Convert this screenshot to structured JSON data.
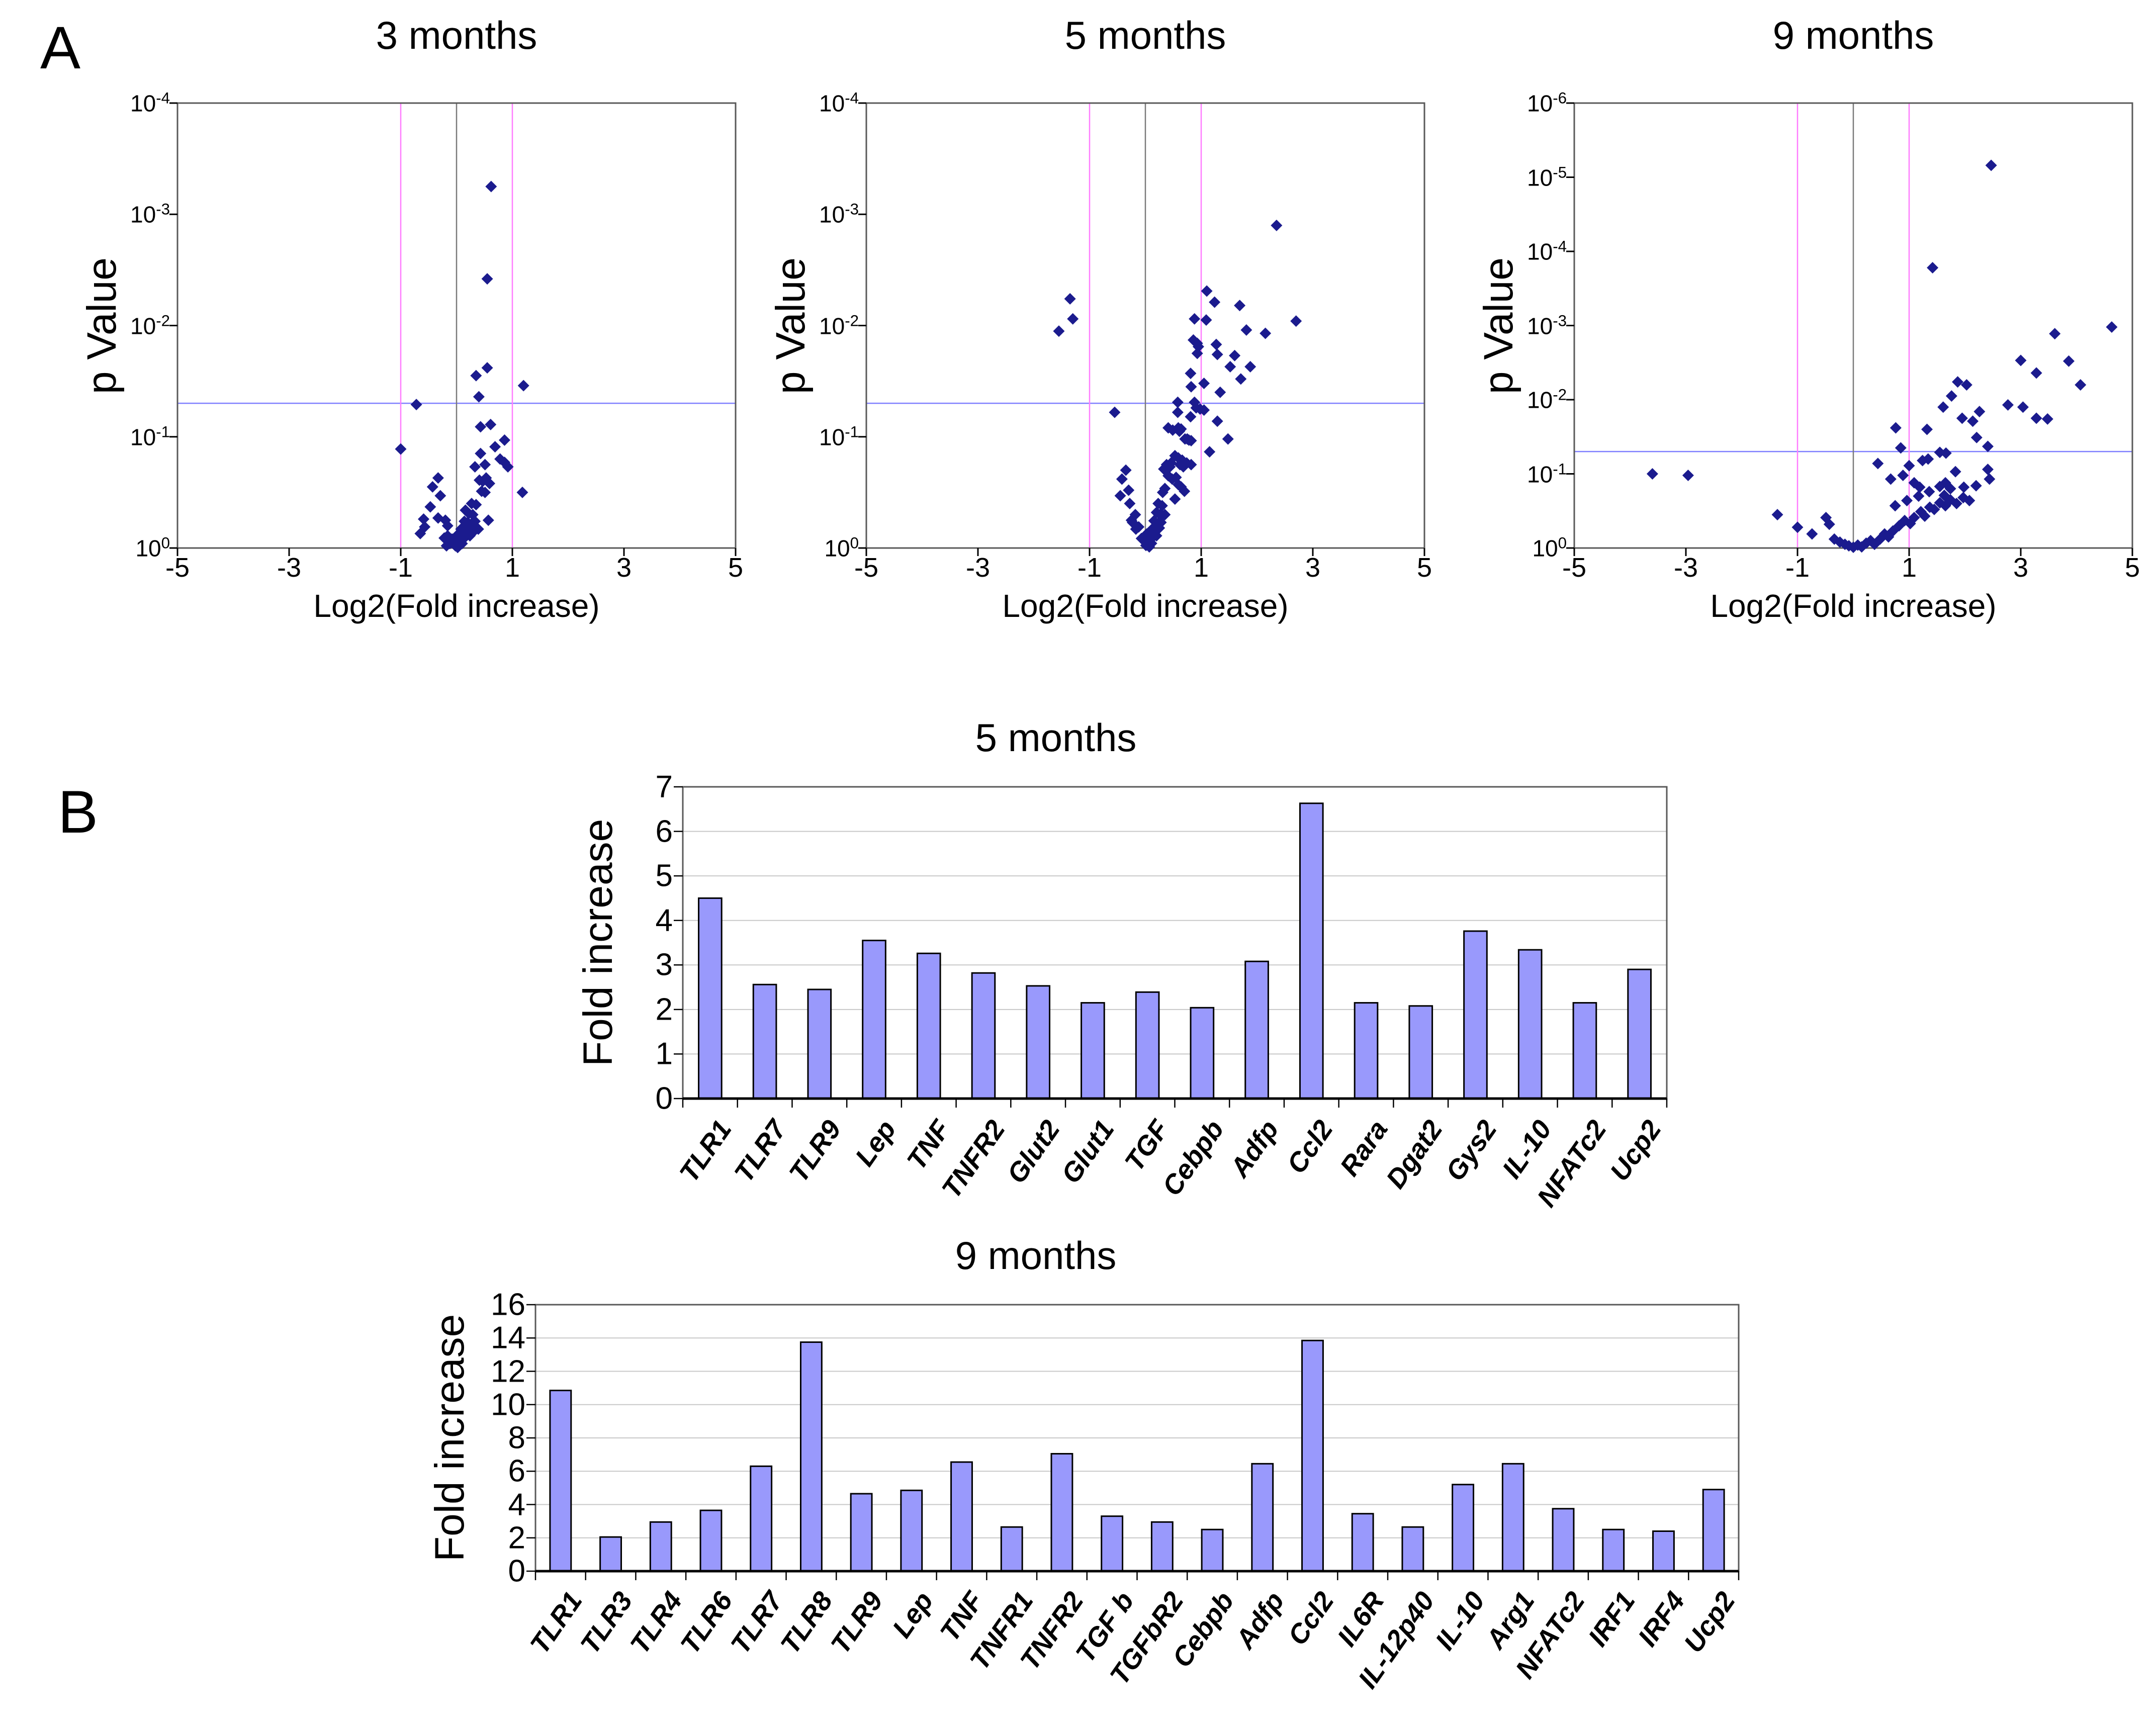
{
  "panel_a": {
    "label": "A"
  },
  "panel_b": {
    "label": "B"
  },
  "colors": {
    "point": "#1b1b8e",
    "threshold_pink": "#ff7dff",
    "threshold_gray": "#7a7a7a",
    "threshold_blue": "#8080ff",
    "bar_fill": "#9999fc",
    "bar_border": "#000000",
    "gridline": "#c8c8c8",
    "frame": "#595959",
    "axis": "#000000"
  },
  "chart_data": [
    {
      "type": "scatter",
      "title": "3 months",
      "xlabel": "Log2(Fold increase)",
      "ylabel": "p Value",
      "x_range": [
        -5,
        5
      ],
      "x_ticks": [
        -5,
        -3,
        -1,
        1,
        3,
        5
      ],
      "y_axis": "log p value, 10^0 at bottom to 10^-4 at top",
      "y_top_exponent": 4,
      "y_tick_exponents": [
        4,
        3,
        2,
        1,
        0
      ],
      "thresholds": {
        "vertical_pink_x": [
          -1,
          1
        ],
        "vertical_gray_x": 0,
        "horizontal_blue_p": 0.05
      },
      "points_x_log2fold_y_neglog10p": [
        [
          0.62,
          3.25
        ],
        [
          0.55,
          2.42
        ],
        [
          0.35,
          1.55
        ],
        [
          1.2,
          1.46
        ],
        [
          0.4,
          1.36
        ],
        [
          -0.72,
          1.29
        ],
        [
          0.55,
          1.62
        ],
        [
          -1.0,
          0.89
        ],
        [
          0.43,
          1.09
        ],
        [
          0.61,
          1.11
        ],
        [
          0.86,
          0.97
        ],
        [
          0.69,
          0.91
        ],
        [
          0.43,
          0.85
        ],
        [
          0.78,
          0.8
        ],
        [
          0.86,
          0.77
        ],
        [
          0.92,
          0.73
        ],
        [
          0.33,
          0.73
        ],
        [
          0.51,
          0.75
        ],
        [
          -0.33,
          0.63
        ],
        [
          -0.43,
          0.55
        ],
        [
          -0.29,
          0.47
        ],
        [
          0.41,
          0.61
        ],
        [
          0.47,
          0.6
        ],
        [
          0.53,
          0.63
        ],
        [
          0.59,
          0.58
        ],
        [
          0.45,
          0.51
        ],
        [
          0.51,
          0.5
        ],
        [
          0.27,
          0.4
        ],
        [
          0.35,
          0.39
        ],
        [
          1.18,
          0.5
        ],
        [
          -0.47,
          0.37
        ],
        [
          -0.59,
          0.26
        ],
        [
          -0.57,
          0.19
        ],
        [
          -0.65,
          0.13
        ],
        [
          -0.33,
          0.27
        ],
        [
          -0.2,
          0.25
        ],
        [
          -0.16,
          0.2
        ],
        [
          0.16,
          0.34
        ],
        [
          0.22,
          0.31
        ],
        [
          0.29,
          0.3
        ],
        [
          0.14,
          0.24
        ],
        [
          0.2,
          0.23
        ],
        [
          0.27,
          0.22
        ],
        [
          0.33,
          0.24
        ],
        [
          0.08,
          0.17
        ],
        [
          0.14,
          0.16
        ],
        [
          0.2,
          0.15
        ],
        [
          0.27,
          0.16
        ],
        [
          0.33,
          0.16
        ],
        [
          0.39,
          0.17
        ],
        [
          0.57,
          0.25
        ],
        [
          0.02,
          0.12
        ],
        [
          0.08,
          0.1
        ],
        [
          0.16,
          0.1
        ],
        [
          0.24,
          0.11
        ],
        [
          -0.08,
          0.08
        ],
        [
          -0.02,
          0.065
        ],
        [
          0.04,
          0.05
        ],
        [
          0.1,
          0.04
        ],
        [
          -0.02,
          0.02
        ],
        [
          0.02,
          0.005
        ],
        [
          -0.16,
          0.11
        ],
        [
          -0.22,
          0.09
        ],
        [
          -0.12,
          0.04
        ],
        [
          -0.18,
          0.02
        ]
      ]
    },
    {
      "type": "scatter",
      "title": "5 months",
      "xlabel": "Log2(Fold increase)",
      "ylabel": "p Value",
      "x_range": [
        -5,
        5
      ],
      "x_ticks": [
        -5,
        -3,
        -1,
        1,
        3,
        5
      ],
      "y_axis": "log p value, 10^0 at bottom to 10^-4 at top",
      "y_top_exponent": 4,
      "y_tick_exponents": [
        4,
        3,
        2,
        1,
        0
      ],
      "thresholds": {
        "vertical_pink_x": [
          -1,
          1
        ],
        "vertical_gray_x": 0,
        "horizontal_blue_p": 0.05
      },
      "points_x_log2fold_y_neglog10p": [
        [
          2.35,
          2.9
        ],
        [
          1.1,
          2.31
        ],
        [
          1.24,
          2.21
        ],
        [
          1.69,
          2.18
        ],
        [
          0.88,
          2.06
        ],
        [
          1.09,
          2.05
        ],
        [
          2.7,
          2.04
        ],
        [
          1.81,
          1.96
        ],
        [
          2.15,
          1.93
        ],
        [
          0.86,
          1.87
        ],
        [
          0.93,
          1.84
        ],
        [
          0.95,
          1.81
        ],
        [
          1.27,
          1.83
        ],
        [
          1.29,
          1.74
        ],
        [
          0.93,
          1.75
        ],
        [
          1.6,
          1.73
        ],
        [
          -1.35,
          2.24
        ],
        [
          -1.3,
          2.06
        ],
        [
          -1.55,
          1.95
        ],
        [
          1.52,
          1.63
        ],
        [
          1.88,
          1.63
        ],
        [
          0.81,
          1.57
        ],
        [
          1.71,
          1.52
        ],
        [
          0.82,
          1.45
        ],
        [
          1.05,
          1.48
        ],
        [
          1.34,
          1.4
        ],
        [
          0.58,
          1.31
        ],
        [
          0.88,
          1.31
        ],
        [
          0.91,
          1.26
        ],
        [
          0.98,
          1.25
        ],
        [
          1.05,
          1.24
        ],
        [
          0.58,
          1.22
        ],
        [
          0.81,
          1.18
        ],
        [
          1.29,
          1.14
        ],
        [
          -0.55,
          1.22
        ],
        [
          0.41,
          1.08
        ],
        [
          0.49,
          1.06
        ],
        [
          0.59,
          1.08
        ],
        [
          0.61,
          1.05
        ],
        [
          0.64,
          1.07
        ],
        [
          0.71,
          0.98
        ],
        [
          0.75,
          0.98
        ],
        [
          0.78,
          0.97
        ],
        [
          0.82,
          0.965
        ],
        [
          1.48,
          0.98
        ],
        [
          1.15,
          0.865
        ],
        [
          0.53,
          0.83
        ],
        [
          0.59,
          0.81
        ],
        [
          0.66,
          0.79
        ],
        [
          0.46,
          0.765
        ],
        [
          0.38,
          0.75
        ],
        [
          0.44,
          0.73
        ],
        [
          0.33,
          0.71
        ],
        [
          0.62,
          0.75
        ],
        [
          0.68,
          0.73
        ],
        [
          0.74,
          0.765
        ],
        [
          0.82,
          0.75
        ],
        [
          -0.35,
          0.7
        ],
        [
          -0.42,
          0.62
        ],
        [
          0.41,
          0.65
        ],
        [
          0.48,
          0.62
        ],
        [
          0.55,
          0.635
        ],
        [
          0.59,
          0.57
        ],
        [
          0.64,
          0.55
        ],
        [
          0.35,
          0.535
        ],
        [
          0.31,
          0.5
        ],
        [
          0.7,
          0.51
        ],
        [
          -0.3,
          0.52
        ],
        [
          -0.45,
          0.47
        ],
        [
          0.53,
          0.44
        ],
        [
          0.23,
          0.4
        ],
        [
          0.3,
          0.38
        ],
        [
          -0.28,
          0.4
        ],
        [
          0.2,
          0.32
        ],
        [
          0.26,
          0.3
        ],
        [
          0.31,
          0.29
        ],
        [
          0.35,
          0.3
        ],
        [
          -0.18,
          0.3
        ],
        [
          -0.25,
          0.25
        ],
        [
          0.155,
          0.245
        ],
        [
          0.22,
          0.22
        ],
        [
          0.28,
          0.23
        ],
        [
          0.12,
          0.17
        ],
        [
          0.19,
          0.16
        ],
        [
          0.25,
          0.18
        ],
        [
          -0.12,
          0.19
        ],
        [
          -0.17,
          0.17
        ],
        [
          0.02,
          0.125
        ],
        [
          0.08,
          0.11
        ],
        [
          0.14,
          0.1
        ],
        [
          0.2,
          0.11
        ],
        [
          -0.07,
          0.086
        ],
        [
          -0.01,
          0.067
        ],
        [
          0.05,
          0.054
        ],
        [
          0.11,
          0.042
        ],
        [
          0.01,
          0.023
        ],
        [
          0.07,
          0.01
        ],
        [
          -0.23,
          0.23
        ]
      ]
    },
    {
      "type": "scatter",
      "title": "9 months",
      "xlabel": "Log2(Fold increase)",
      "ylabel": "p Value",
      "x_range": [
        -5,
        5
      ],
      "x_ticks": [
        -5,
        -3,
        -1,
        1,
        3,
        5
      ],
      "y_axis": "log p value, 10^0 at bottom to 10^-6 at top",
      "y_top_exponent": 6,
      "y_tick_exponents": [
        6,
        5,
        4,
        3,
        2,
        1,
        0
      ],
      "thresholds": {
        "vertical_pink_x": [
          -1,
          1
        ],
        "vertical_gray_x": 0,
        "horizontal_blue_p": 0.05
      },
      "points_x_log2fold_y_neglog10p": [
        [
          2.47,
          5.16
        ],
        [
          1.42,
          3.78
        ],
        [
          4.63,
          2.98
        ],
        [
          3.61,
          2.89
        ],
        [
          3.0,
          2.53
        ],
        [
          3.86,
          2.52
        ],
        [
          3.28,
          2.36
        ],
        [
          4.07,
          2.2
        ],
        [
          1.87,
          2.24
        ],
        [
          2.03,
          2.2
        ],
        [
          1.76,
          2.05
        ],
        [
          3.04,
          1.9
        ],
        [
          3.28,
          1.75
        ],
        [
          3.48,
          1.74
        ],
        [
          2.77,
          1.93
        ],
        [
          1.95,
          1.75
        ],
        [
          2.14,
          1.71
        ],
        [
          2.26,
          1.84
        ],
        [
          1.61,
          1.9
        ],
        [
          1.32,
          1.6
        ],
        [
          2.21,
          1.49
        ],
        [
          2.41,
          1.37
        ],
        [
          0.85,
          1.35
        ],
        [
          0.76,
          1.62
        ],
        [
          1.55,
          1.29
        ],
        [
          1.66,
          1.28
        ],
        [
          1.0,
          1.11
        ],
        [
          1.24,
          1.18
        ],
        [
          1.34,
          1.2
        ],
        [
          1.83,
          1.03
        ],
        [
          0.44,
          1.14
        ],
        [
          0.67,
          0.93
        ],
        [
          0.89,
          0.98
        ],
        [
          1.09,
          0.88
        ],
        [
          1.19,
          0.82
        ],
        [
          1.55,
          0.83
        ],
        [
          1.65,
          0.88
        ],
        [
          1.74,
          0.8
        ],
        [
          1.98,
          0.82
        ],
        [
          2.2,
          0.84
        ],
        [
          2.41,
          1.06
        ],
        [
          2.44,
          0.93
        ],
        [
          -3.6,
          1.0
        ],
        [
          -2.96,
          0.98
        ],
        [
          -1.36,
          0.45
        ],
        [
          -1.0,
          0.28
        ],
        [
          -0.74,
          0.19
        ],
        [
          -0.49,
          0.41
        ],
        [
          -0.43,
          0.32
        ],
        [
          -0.34,
          0.12
        ],
        [
          -0.24,
          0.08
        ],
        [
          -0.15,
          0.05
        ],
        [
          -0.08,
          0.03
        ],
        [
          0.0,
          0.01
        ],
        [
          0.08,
          0.04
        ],
        [
          0.15,
          0.015
        ],
        [
          0.23,
          0.065
        ],
        [
          0.31,
          0.1
        ],
        [
          0.38,
          0.05
        ],
        [
          0.48,
          0.12
        ],
        [
          0.56,
          0.19
        ],
        [
          0.63,
          0.15
        ],
        [
          0.71,
          0.23
        ],
        [
          0.82,
          0.3
        ],
        [
          0.92,
          0.37
        ],
        [
          1.02,
          0.33
        ],
        [
          1.09,
          0.41
        ],
        [
          1.21,
          0.49
        ],
        [
          1.28,
          0.43
        ],
        [
          1.37,
          0.55
        ],
        [
          1.45,
          0.52
        ],
        [
          1.55,
          0.61
        ],
        [
          1.65,
          0.57
        ],
        [
          1.74,
          0.65
        ],
        [
          1.85,
          0.6
        ],
        [
          1.97,
          0.68
        ],
        [
          2.08,
          0.64
        ],
        [
          1.63,
          0.71
        ],
        [
          1.36,
          0.76
        ],
        [
          1.17,
          0.7
        ],
        [
          0.96,
          0.64
        ],
        [
          0.75,
          0.57
        ]
      ]
    },
    {
      "type": "bar",
      "title": "5 months",
      "xlabel": "",
      "ylabel": "Fold increase",
      "ylim": [
        0,
        7
      ],
      "ytick_step": 1,
      "grid": "horizontal",
      "legend": "none",
      "categories": [
        "TLR1",
        "TLR7",
        "TLR9",
        "Lep",
        "TNF",
        "TNFR2",
        "Glut2",
        "Glut1",
        "TGF",
        "Cebpb",
        "Adfp",
        "Ccl2",
        "Rara",
        "Dgat2",
        "Gys2",
        "IL-10",
        "NFATc2",
        "Ucp2"
      ],
      "values": [
        4.5,
        2.56,
        2.45,
        3.55,
        3.26,
        2.82,
        2.53,
        2.15,
        2.39,
        2.04,
        3.08,
        6.63,
        2.15,
        2.08,
        3.76,
        3.34,
        2.15,
        2.9
      ]
    },
    {
      "type": "bar",
      "title": "9 months",
      "xlabel": "",
      "ylabel": "Fold increase",
      "ylim": [
        0,
        16
      ],
      "ytick_step": 2,
      "grid": "horizontal",
      "legend": "none",
      "categories": [
        "TLR1",
        "TLR3",
        "TLR4",
        "TLR6",
        "TLR7",
        "TLR8",
        "TLR9",
        "Lep",
        "TNF",
        "TNFR1",
        "TNFR2",
        "TGF b",
        "TGFbR2",
        "Cebpb",
        "Adfp",
        "Ccl2",
        "IL6R",
        "IL-12p40",
        "IL-10",
        "Arg1",
        "NFATc2",
        "IRF1",
        "IRF4",
        "Ucp2"
      ],
      "values": [
        10.85,
        2.05,
        2.95,
        3.65,
        6.3,
        13.75,
        4.65,
        4.85,
        6.55,
        2.65,
        7.05,
        3.3,
        2.95,
        2.5,
        6.45,
        13.85,
        3.45,
        2.65,
        5.2,
        6.45,
        3.75,
        2.5,
        2.4,
        4.9
      ]
    }
  ]
}
